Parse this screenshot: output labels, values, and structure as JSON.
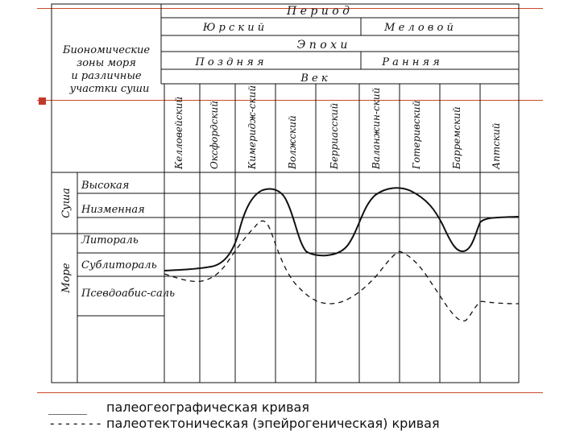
{
  "header": {
    "period": "П е р и о д",
    "jurassic": "Ю р с к и й",
    "cretaceous": "М е л о в о й",
    "epoch": "Э п о х и",
    "late": "П о з д н я я",
    "early": "Р а н н я я",
    "century": "В е к",
    "zones_title": [
      "Биономические",
      "зоны моря",
      "и различные",
      "участки суши"
    ]
  },
  "stages": [
    "Келловейский",
    "Оксфордский",
    "Кимеридж-ский",
    "Волжский",
    "Берриасский",
    "Валанжин-ский",
    "Готеривский",
    "Барремский",
    "Аптский"
  ],
  "groups": {
    "land": "Суша",
    "sea": "Море"
  },
  "zones": [
    "Высокая",
    "Низменная",
    "Литораль",
    "Сублитораль",
    "Псевдоабис-саль"
  ],
  "legend": [
    {
      "key": "_____",
      "label": "палеогеографическая кривая"
    },
    {
      "key": "-------",
      "label": "палеотектоническая (эпейрогеническая) кривая"
    }
  ],
  "colors": {
    "accent": "#c0392b",
    "ink": "#111111"
  }
}
